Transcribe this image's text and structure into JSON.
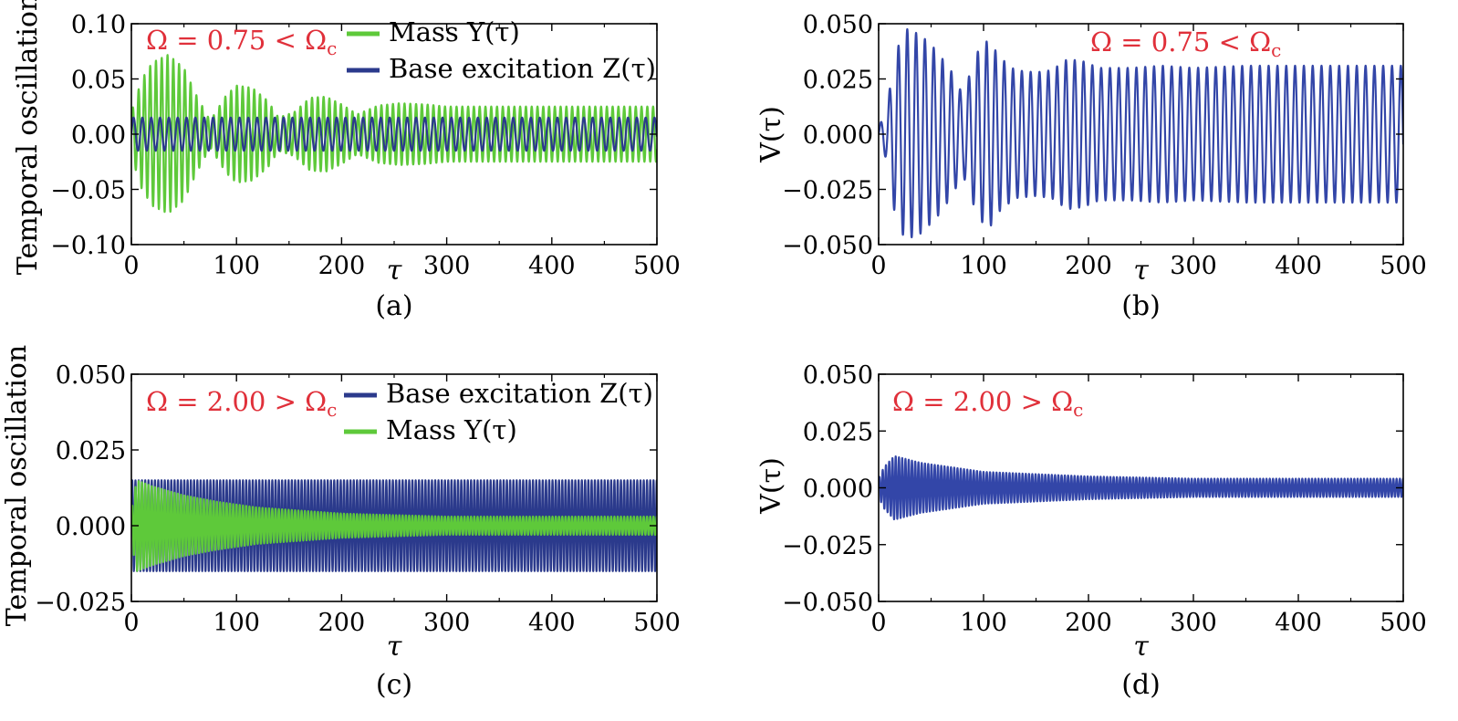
{
  "colors": {
    "mass": "#5ec93a",
    "base": "#2b3a8c",
    "velocity": "#3346a8",
    "annotation": "#e0303a"
  },
  "chart_data": [
    {
      "panel": "(a)",
      "type": "line",
      "xlabel": "τ",
      "ylabel": "Temporal oscillation",
      "xlim": [
        0,
        500
      ],
      "ylim": [
        -0.1,
        0.1
      ],
      "xticks": [
        "0",
        "100",
        "200",
        "300",
        "400",
        "500"
      ],
      "yticks": [
        "−0.10",
        "−0.05",
        "0.00",
        "0.05",
        "0.10"
      ],
      "ytick_values": [
        -0.1,
        -0.05,
        0.0,
        0.05,
        0.1
      ],
      "annotation": "Ω = 0.75 < Ωc",
      "legend": [
        "Mass  Y(τ)",
        "Base excitation  Z(τ)"
      ],
      "series": [
        {
          "name": "Mass  Y(τ)",
          "color_key": "mass",
          "envelope": {
            "x": [
              0,
              10,
              20,
              35,
              50,
              62,
              75,
              90,
              100,
              115,
              130,
              140,
              155,
              170,
              185,
              200,
              215,
              235,
              255,
              280,
              300,
              350,
              400,
              450,
              500
            ],
            "amp": [
              0.02,
              0.05,
              0.065,
              0.072,
              0.06,
              0.035,
              0.012,
              0.035,
              0.044,
              0.042,
              0.03,
              0.015,
              0.02,
              0.033,
              0.034,
              0.027,
              0.018,
              0.026,
              0.028,
              0.027,
              0.025,
              0.025,
              0.025,
              0.025,
              0.025
            ]
          },
          "period": 5.5
        },
        {
          "name": "Base excitation  Z(τ)",
          "color_key": "base",
          "envelope": {
            "x": [
              0,
              500
            ],
            "amp": [
              0.015,
              0.015
            ]
          },
          "period": 8.4
        }
      ]
    },
    {
      "panel": "(b)",
      "type": "line",
      "xlabel": "τ",
      "ylabel": "V(τ)",
      "xlim": [
        0,
        500
      ],
      "ylim": [
        -0.05,
        0.05
      ],
      "xticks": [
        "0",
        "100",
        "200",
        "300",
        "400",
        "500"
      ],
      "yticks": [
        "−0.050",
        "−0.025",
        "0.000",
        "0.025",
        "0.050"
      ],
      "ytick_values": [
        -0.05,
        -0.025,
        0.0,
        0.025,
        0.05
      ],
      "annotation": "Ω = 0.75 < Ωc",
      "series": [
        {
          "name": "",
          "color_key": "velocity",
          "envelope": {
            "x": [
              0,
              8,
              15,
              25,
              40,
              55,
              70,
              80,
              95,
              105,
              115,
              130,
              150,
              165,
              180,
              195,
              210,
              240,
              270,
              300,
              350,
              400,
              450,
              500
            ],
            "amp": [
              0.003,
              0.012,
              0.035,
              0.048,
              0.045,
              0.038,
              0.028,
              0.018,
              0.038,
              0.043,
              0.035,
              0.029,
              0.028,
              0.029,
              0.034,
              0.033,
              0.03,
              0.03,
              0.031,
              0.03,
              0.031,
              0.031,
              0.031,
              0.031
            ]
          },
          "period": 8.4
        }
      ]
    },
    {
      "panel": "(c)",
      "type": "line",
      "xlabel": "τ",
      "ylabel": "Temporal oscillation",
      "xlim": [
        0,
        500
      ],
      "ylim": [
        -0.025,
        0.05
      ],
      "xticks": [
        "0",
        "100",
        "200",
        "300",
        "400",
        "500"
      ],
      "yticks": [
        "−0.025",
        "0.000",
        "0.025",
        "0.050"
      ],
      "ytick_values": [
        -0.025,
        0.0,
        0.025,
        0.05
      ],
      "annotation": "Ω = 2.00 > Ωc",
      "legend": [
        "Base excitation  Z(τ)",
        "Mass  Y(τ)"
      ],
      "series": [
        {
          "name": "Base excitation  Z(τ)",
          "color_key": "base",
          "envelope": {
            "x": [
              0,
              500
            ],
            "amp": [
              0.015,
              0.015
            ]
          },
          "period": 3.1
        },
        {
          "name": "Mass  Y(τ)",
          "color_key": "mass",
          "envelope": {
            "x": [
              0,
              5,
              20,
              50,
              80,
              120,
              160,
              200,
              250,
              300,
              400,
              500
            ],
            "amp": [
              0.005,
              0.015,
              0.013,
              0.01,
              0.008,
              0.006,
              0.005,
              0.004,
              0.0035,
              0.003,
              0.003,
              0.003
            ]
          },
          "period": 3.1
        }
      ]
    },
    {
      "panel": "(d)",
      "type": "line",
      "xlabel": "τ",
      "ylabel": "V(τ)",
      "xlim": [
        0,
        500
      ],
      "ylim": [
        -0.05,
        0.05
      ],
      "xticks": [
        "0",
        "100",
        "200",
        "300",
        "400",
        "500"
      ],
      "yticks": [
        "−0.050",
        "−0.025",
        "0.000",
        "0.025",
        "0.050"
      ],
      "ytick_values": [
        -0.05,
        -0.025,
        0.0,
        0.025,
        0.05
      ],
      "annotation": "Ω = 2.00 > Ωc",
      "series": [
        {
          "name": "",
          "color_key": "velocity",
          "envelope": {
            "x": [
              0,
              5,
              15,
              40,
              70,
              100,
              150,
              200,
              250,
              300,
              400,
              500
            ],
            "amp": [
              0.004,
              0.009,
              0.014,
              0.011,
              0.009,
              0.007,
              0.006,
              0.005,
              0.0045,
              0.004,
              0.004,
              0.004
            ]
          },
          "period": 3.1
        }
      ]
    }
  ]
}
